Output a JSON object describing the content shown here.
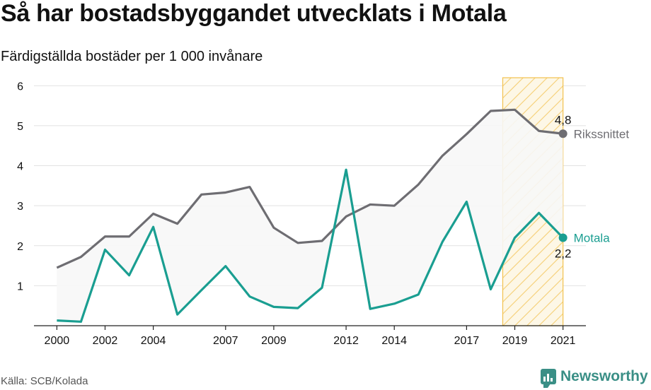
{
  "title": "Så har bostadsbyggandet utvecklats i Motala",
  "subtitle": "Färdigställda bostäder per 1 000 invånare",
  "source": "Källa: SCB/Kolada",
  "brand": "Newsworthy",
  "colors": {
    "riket": "#6e6d72",
    "motala": "#1a9e91",
    "band_fill": "#f7f7f7",
    "highlight": "#f2c14e",
    "grid": "#e2e2e2",
    "axis": "#222222",
    "brand": "#3a8f86"
  },
  "chart_data": {
    "type": "line",
    "x": [
      2000,
      2001,
      2002,
      2003,
      2004,
      2005,
      2006,
      2007,
      2008,
      2009,
      2010,
      2011,
      2012,
      2013,
      2014,
      2015,
      2016,
      2017,
      2018,
      2019,
      2020,
      2021
    ],
    "x_ticks": [
      "2000",
      "2002",
      "2004",
      "2007",
      "2009",
      "2012",
      "2014",
      "2017",
      "2019",
      "2021"
    ],
    "y_ticks": [
      "1",
      "2",
      "3",
      "4",
      "5",
      "6"
    ],
    "ylim": [
      0,
      6.2
    ],
    "highlight_range": [
      2018.5,
      2021
    ],
    "series": [
      {
        "name": "Rikssnittet",
        "values": [
          1.45,
          1.72,
          2.23,
          2.23,
          2.8,
          2.55,
          3.28,
          3.33,
          3.47,
          2.45,
          2.07,
          2.12,
          2.73,
          3.03,
          3.0,
          3.53,
          4.25,
          4.79,
          5.37,
          5.4,
          4.87,
          4.8
        ],
        "end_label": "4,8"
      },
      {
        "name": "Motala",
        "values": [
          0.13,
          0.1,
          1.9,
          1.26,
          2.47,
          0.28,
          0.89,
          1.49,
          0.73,
          0.47,
          0.44,
          0.95,
          3.9,
          0.42,
          0.55,
          0.78,
          2.1,
          3.1,
          0.91,
          2.2,
          2.82,
          2.2
        ],
        "end_label": "2,2"
      }
    ]
  }
}
